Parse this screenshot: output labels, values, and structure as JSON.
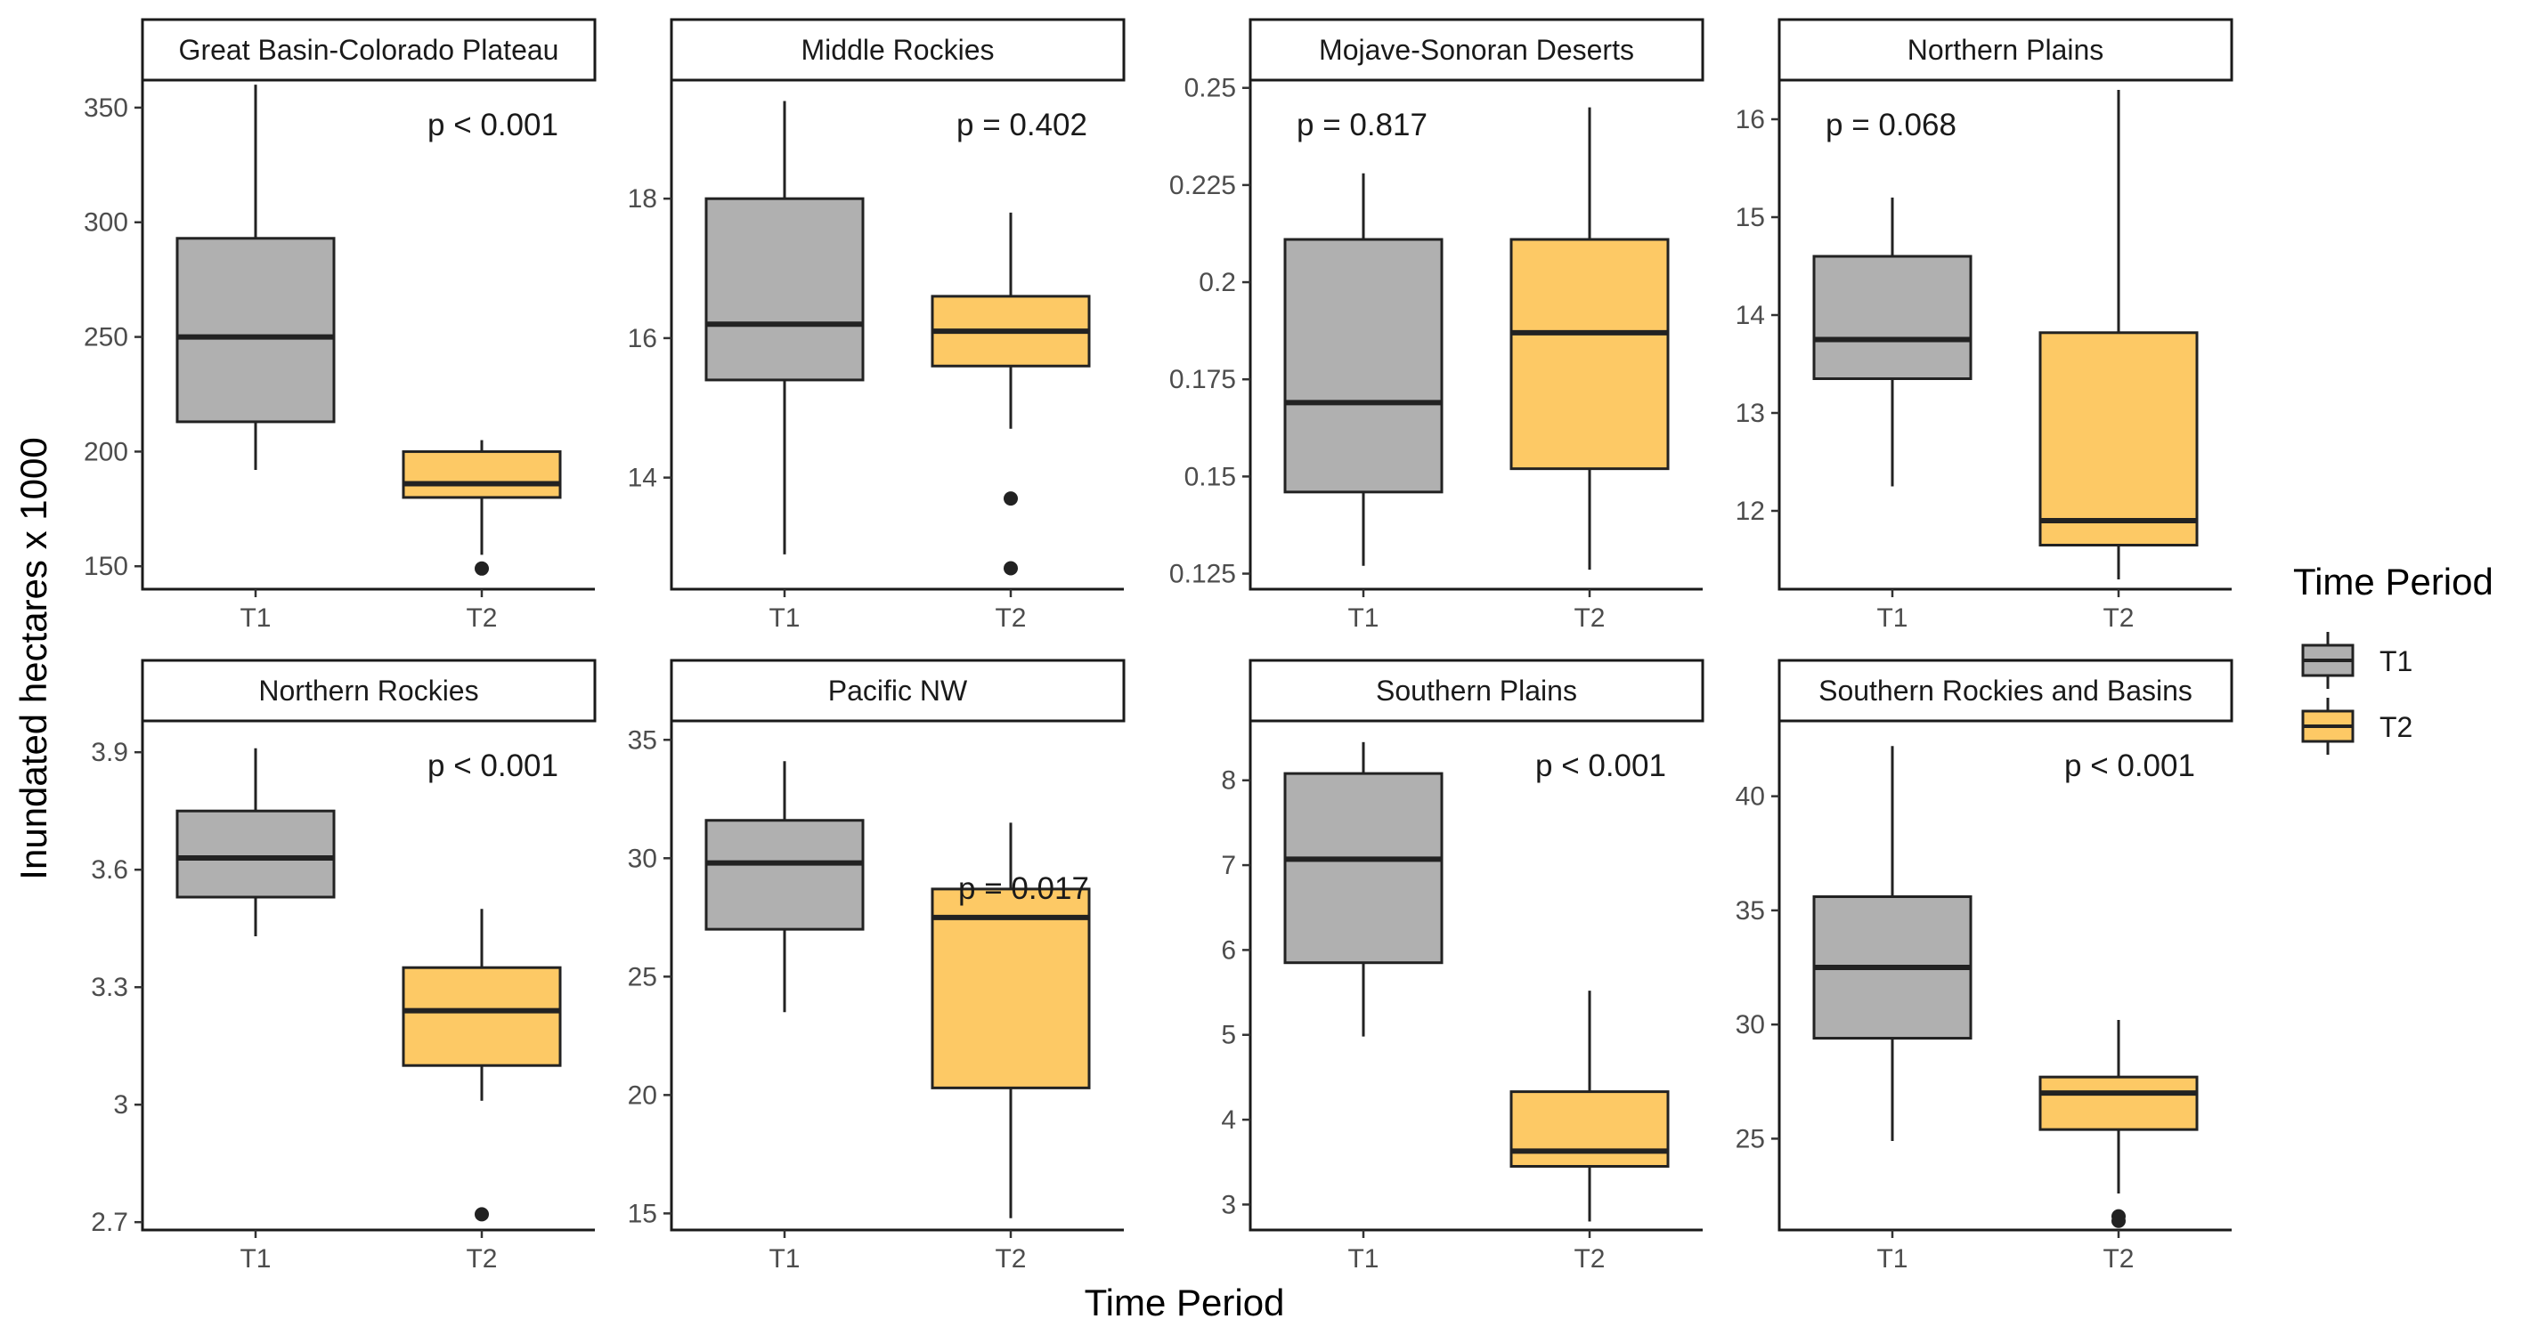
{
  "chart_data": {
    "type": "boxplot",
    "facet_layout": "2x4",
    "xlabel": "Time Period",
    "ylabel": "Inundated hectares x 1000",
    "categories": [
      "T1",
      "T2"
    ],
    "legend": {
      "title": "Time Period",
      "placement": "right",
      "items": [
        {
          "label": "T1",
          "color": "#b0b0b0"
        },
        {
          "label": "T2",
          "color": "#fdc965"
        }
      ]
    },
    "grid": false,
    "panels": [
      {
        "title": "Great Basin-Colorado Plateau",
        "pvalue": "p < 0.001",
        "pvalue_anchor": "top-right",
        "ylim": [
          140,
          362
        ],
        "yticks": [
          150,
          200,
          250,
          300,
          350
        ],
        "yticklabels": [
          "150",
          "200",
          "250",
          "300",
          "350"
        ],
        "boxes": [
          {
            "category": "T1",
            "min": 192,
            "q1": 213,
            "median": 250,
            "q3": 293,
            "max": 360,
            "outliers": []
          },
          {
            "category": "T2",
            "min": 155,
            "q1": 180,
            "median": 186,
            "q3": 200,
            "max": 205,
            "outliers": [
              149
            ]
          }
        ]
      },
      {
        "title": "Middle Rockies",
        "pvalue": "p = 0.402",
        "pvalue_anchor": "top-right",
        "ylim": [
          12.4,
          19.7
        ],
        "yticks": [
          14,
          16,
          18
        ],
        "yticklabels": [
          "14",
          "16",
          "18"
        ],
        "boxes": [
          {
            "category": "T1",
            "min": 12.9,
            "q1": 15.4,
            "median": 16.2,
            "q3": 18.0,
            "max": 19.4,
            "outliers": []
          },
          {
            "category": "T2",
            "min": 14.7,
            "q1": 15.6,
            "median": 16.1,
            "q3": 16.6,
            "max": 17.8,
            "outliers": [
              13.7,
              12.7
            ]
          }
        ]
      },
      {
        "title": "Mojave-Sonoran Deserts",
        "pvalue": "p = 0.817",
        "pvalue_anchor": "top-left",
        "ylim": [
          0.121,
          0.252
        ],
        "yticks": [
          0.125,
          0.15,
          0.175,
          0.2,
          0.225,
          0.25
        ],
        "yticklabels": [
          "0.125",
          "0.15",
          "0.175",
          "0.2",
          "0.225",
          "0.25"
        ],
        "boxes": [
          {
            "category": "T1",
            "min": 0.127,
            "q1": 0.146,
            "median": 0.169,
            "q3": 0.211,
            "max": 0.228,
            "outliers": []
          },
          {
            "category": "T2",
            "min": 0.126,
            "q1": 0.152,
            "median": 0.187,
            "q3": 0.211,
            "max": 0.245,
            "outliers": []
          }
        ]
      },
      {
        "title": "Northern Plains",
        "pvalue": "p = 0.068",
        "pvalue_anchor": "top-left",
        "ylim": [
          11.2,
          16.4
        ],
        "yticks": [
          12,
          13,
          14,
          15,
          16
        ],
        "yticklabels": [
          "12",
          "13",
          "14",
          "15",
          "16"
        ],
        "boxes": [
          {
            "category": "T1",
            "min": 12.25,
            "q1": 13.35,
            "median": 13.75,
            "q3": 14.6,
            "max": 15.2,
            "outliers": []
          },
          {
            "category": "T2",
            "min": 11.3,
            "q1": 11.65,
            "median": 11.9,
            "q3": 13.82,
            "max": 16.3,
            "outliers": []
          }
        ]
      },
      {
        "title": "Northern Rockies",
        "pvalue": "p < 0.001",
        "pvalue_anchor": "top-right",
        "ylim": [
          2.68,
          3.98
        ],
        "yticks": [
          2.7,
          3.0,
          3.3,
          3.6,
          3.9
        ],
        "yticklabels": [
          "2.7",
          "3",
          "3.3",
          "3.6",
          "3.9"
        ],
        "boxes": [
          {
            "category": "T1",
            "min": 3.43,
            "q1": 3.53,
            "median": 3.63,
            "q3": 3.75,
            "max": 3.91,
            "outliers": []
          },
          {
            "category": "T2",
            "min": 3.01,
            "q1": 3.1,
            "median": 3.24,
            "q3": 3.35,
            "max": 3.5,
            "outliers": [
              2.72
            ]
          }
        ]
      },
      {
        "title": "Pacific NW",
        "pvalue": "p = 0.017",
        "pvalue_anchor": "middle-right",
        "ylim": [
          14.3,
          35.8
        ],
        "yticks": [
          15,
          20,
          25,
          30,
          35
        ],
        "yticklabels": [
          "15",
          "20",
          "25",
          "30",
          "35"
        ],
        "boxes": [
          {
            "category": "T1",
            "min": 23.5,
            "q1": 27.0,
            "median": 29.8,
            "q3": 31.6,
            "max": 34.1,
            "outliers": []
          },
          {
            "category": "T2",
            "min": 14.8,
            "q1": 20.3,
            "median": 27.5,
            "q3": 28.7,
            "max": 31.5,
            "outliers": []
          }
        ]
      },
      {
        "title": "Southern Plains",
        "pvalue": "p < 0.001",
        "pvalue_anchor": "top-right",
        "ylim": [
          2.7,
          8.7
        ],
        "yticks": [
          3,
          4,
          5,
          6,
          7,
          8
        ],
        "yticklabels": [
          "3",
          "4",
          "5",
          "6",
          "7",
          "8"
        ],
        "boxes": [
          {
            "category": "T1",
            "min": 4.98,
            "q1": 5.85,
            "median": 7.07,
            "q3": 8.08,
            "max": 8.45,
            "outliers": []
          },
          {
            "category": "T2",
            "min": 2.8,
            "q1": 3.45,
            "median": 3.63,
            "q3": 4.33,
            "max": 5.52,
            "outliers": []
          }
        ]
      },
      {
        "title": "Southern Rockies and Basins",
        "pvalue": "p < 0.001",
        "pvalue_anchor": "top-right",
        "ylim": [
          21.0,
          43.3
        ],
        "yticks": [
          25,
          30,
          35,
          40
        ],
        "yticklabels": [
          "25",
          "30",
          "35",
          "40"
        ],
        "boxes": [
          {
            "category": "T1",
            "min": 24.9,
            "q1": 29.4,
            "median": 32.5,
            "q3": 35.6,
            "max": 42.2,
            "outliers": []
          },
          {
            "category": "T2",
            "min": 22.6,
            "q1": 25.4,
            "median": 27.0,
            "q3": 27.7,
            "max": 30.2,
            "outliers": [
              21.4,
              21.6
            ]
          }
        ]
      }
    ]
  }
}
